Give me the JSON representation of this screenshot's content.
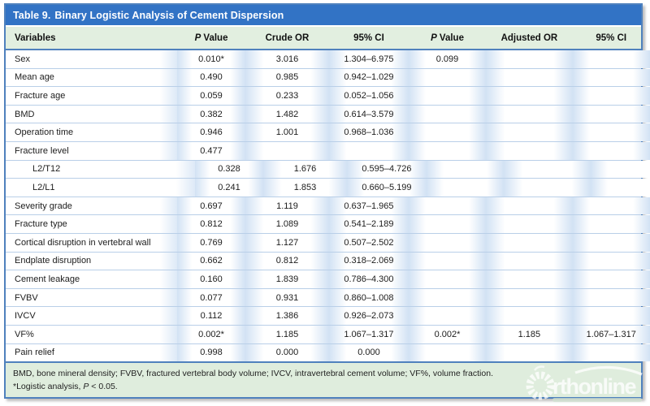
{
  "header": {
    "table_number": "Table 9.",
    "table_title": "Binary Logistic Analysis of Cement Dispersion"
  },
  "table": {
    "columns": [
      {
        "key": "variables",
        "label": "Variables",
        "italic_first": false
      },
      {
        "key": "p-value-crude",
        "label": "P Value",
        "italic_first": true
      },
      {
        "key": "crude-or",
        "label": "Crude OR",
        "italic_first": false
      },
      {
        "key": "ci-crude",
        "label": "95% CI",
        "italic_first": false
      },
      {
        "key": "p-value-adjusted",
        "label": "P Value",
        "italic_first": true
      },
      {
        "key": "adjusted-or",
        "label": "Adjusted OR",
        "italic_first": false
      },
      {
        "key": "ci-adjusted",
        "label": "95% CI",
        "italic_first": false
      }
    ],
    "rows": [
      {
        "indent": false,
        "cells": [
          "Sex",
          "0.010*",
          "3.016",
          "1.304–6.975",
          "0.099",
          "",
          ""
        ]
      },
      {
        "indent": false,
        "cells": [
          "Mean age",
          "0.490",
          "0.985",
          "0.942–1.029",
          "",
          "",
          ""
        ]
      },
      {
        "indent": false,
        "cells": [
          "Fracture age",
          "0.059",
          "0.233",
          "0.052–1.056",
          "",
          "",
          ""
        ]
      },
      {
        "indent": false,
        "cells": [
          "BMD",
          "0.382",
          "1.482",
          "0.614–3.579",
          "",
          "",
          ""
        ]
      },
      {
        "indent": false,
        "cells": [
          "Operation time",
          "0.946",
          "1.001",
          "0.968–1.036",
          "",
          "",
          ""
        ]
      },
      {
        "indent": false,
        "cells": [
          "Fracture level",
          "0.477",
          "",
          "",
          "",
          "",
          ""
        ]
      },
      {
        "indent": true,
        "cells": [
          "L2/T12",
          "0.328",
          "1.676",
          "0.595–4.726",
          "",
          "",
          ""
        ]
      },
      {
        "indent": true,
        "cells": [
          "L2/L1",
          "0.241",
          "1.853",
          "0.660–5.199",
          "",
          "",
          ""
        ]
      },
      {
        "indent": false,
        "cells": [
          "Severity grade",
          "0.697",
          "1.119",
          "0.637–1.965",
          "",
          "",
          ""
        ]
      },
      {
        "indent": false,
        "cells": [
          "Fracture type",
          "0.812",
          "1.089",
          "0.541–2.189",
          "",
          "",
          ""
        ]
      },
      {
        "indent": false,
        "cells": [
          "Cortical disruption in vertebral wall",
          "0.769",
          "1.127",
          "0.507–2.502",
          "",
          "",
          ""
        ]
      },
      {
        "indent": false,
        "cells": [
          "Endplate disruption",
          "0.662",
          "0.812",
          "0.318–2.069",
          "",
          "",
          ""
        ]
      },
      {
        "indent": false,
        "cells": [
          "Cement leakage",
          "0.160",
          "1.839",
          "0.786–4.300",
          "",
          "",
          ""
        ]
      },
      {
        "indent": false,
        "cells": [
          "FVBV",
          "0.077",
          "0.931",
          "0.860–1.008",
          "",
          "",
          ""
        ]
      },
      {
        "indent": false,
        "cells": [
          "IVCV",
          "0.112",
          "1.386",
          "0.926–2.073",
          "",
          "",
          ""
        ]
      },
      {
        "indent": false,
        "cells": [
          "VF%",
          "0.002*",
          "1.185",
          "1.067–1.317",
          "0.002*",
          "1.185",
          "1.067–1.317"
        ]
      },
      {
        "indent": false,
        "cells": [
          "Pain relief",
          "0.998",
          "0.000",
          "0.000",
          "",
          "",
          ""
        ]
      }
    ]
  },
  "footnotes": {
    "abbreviations": "BMD, bone mineral density; FVBV, fractured vertebral body volume; IVCV, intravertebral cement volume; VF%, volume fraction.",
    "significance": {
      "pre": "*Logistic analysis, ",
      "italic": "P",
      "post": " < 0.05."
    }
  },
  "watermark": {
    "text": "rthonline"
  },
  "colors": {
    "title_bar_blue": "#3273c5",
    "border_blue": "#4f81bd",
    "header_green": "#e2efe0",
    "footer_green": "#dfeddd",
    "row_line_blue": "#b9cfe8",
    "cell_band_blue": "#d2e2f4",
    "text_dark": "#1c1c1c"
  }
}
